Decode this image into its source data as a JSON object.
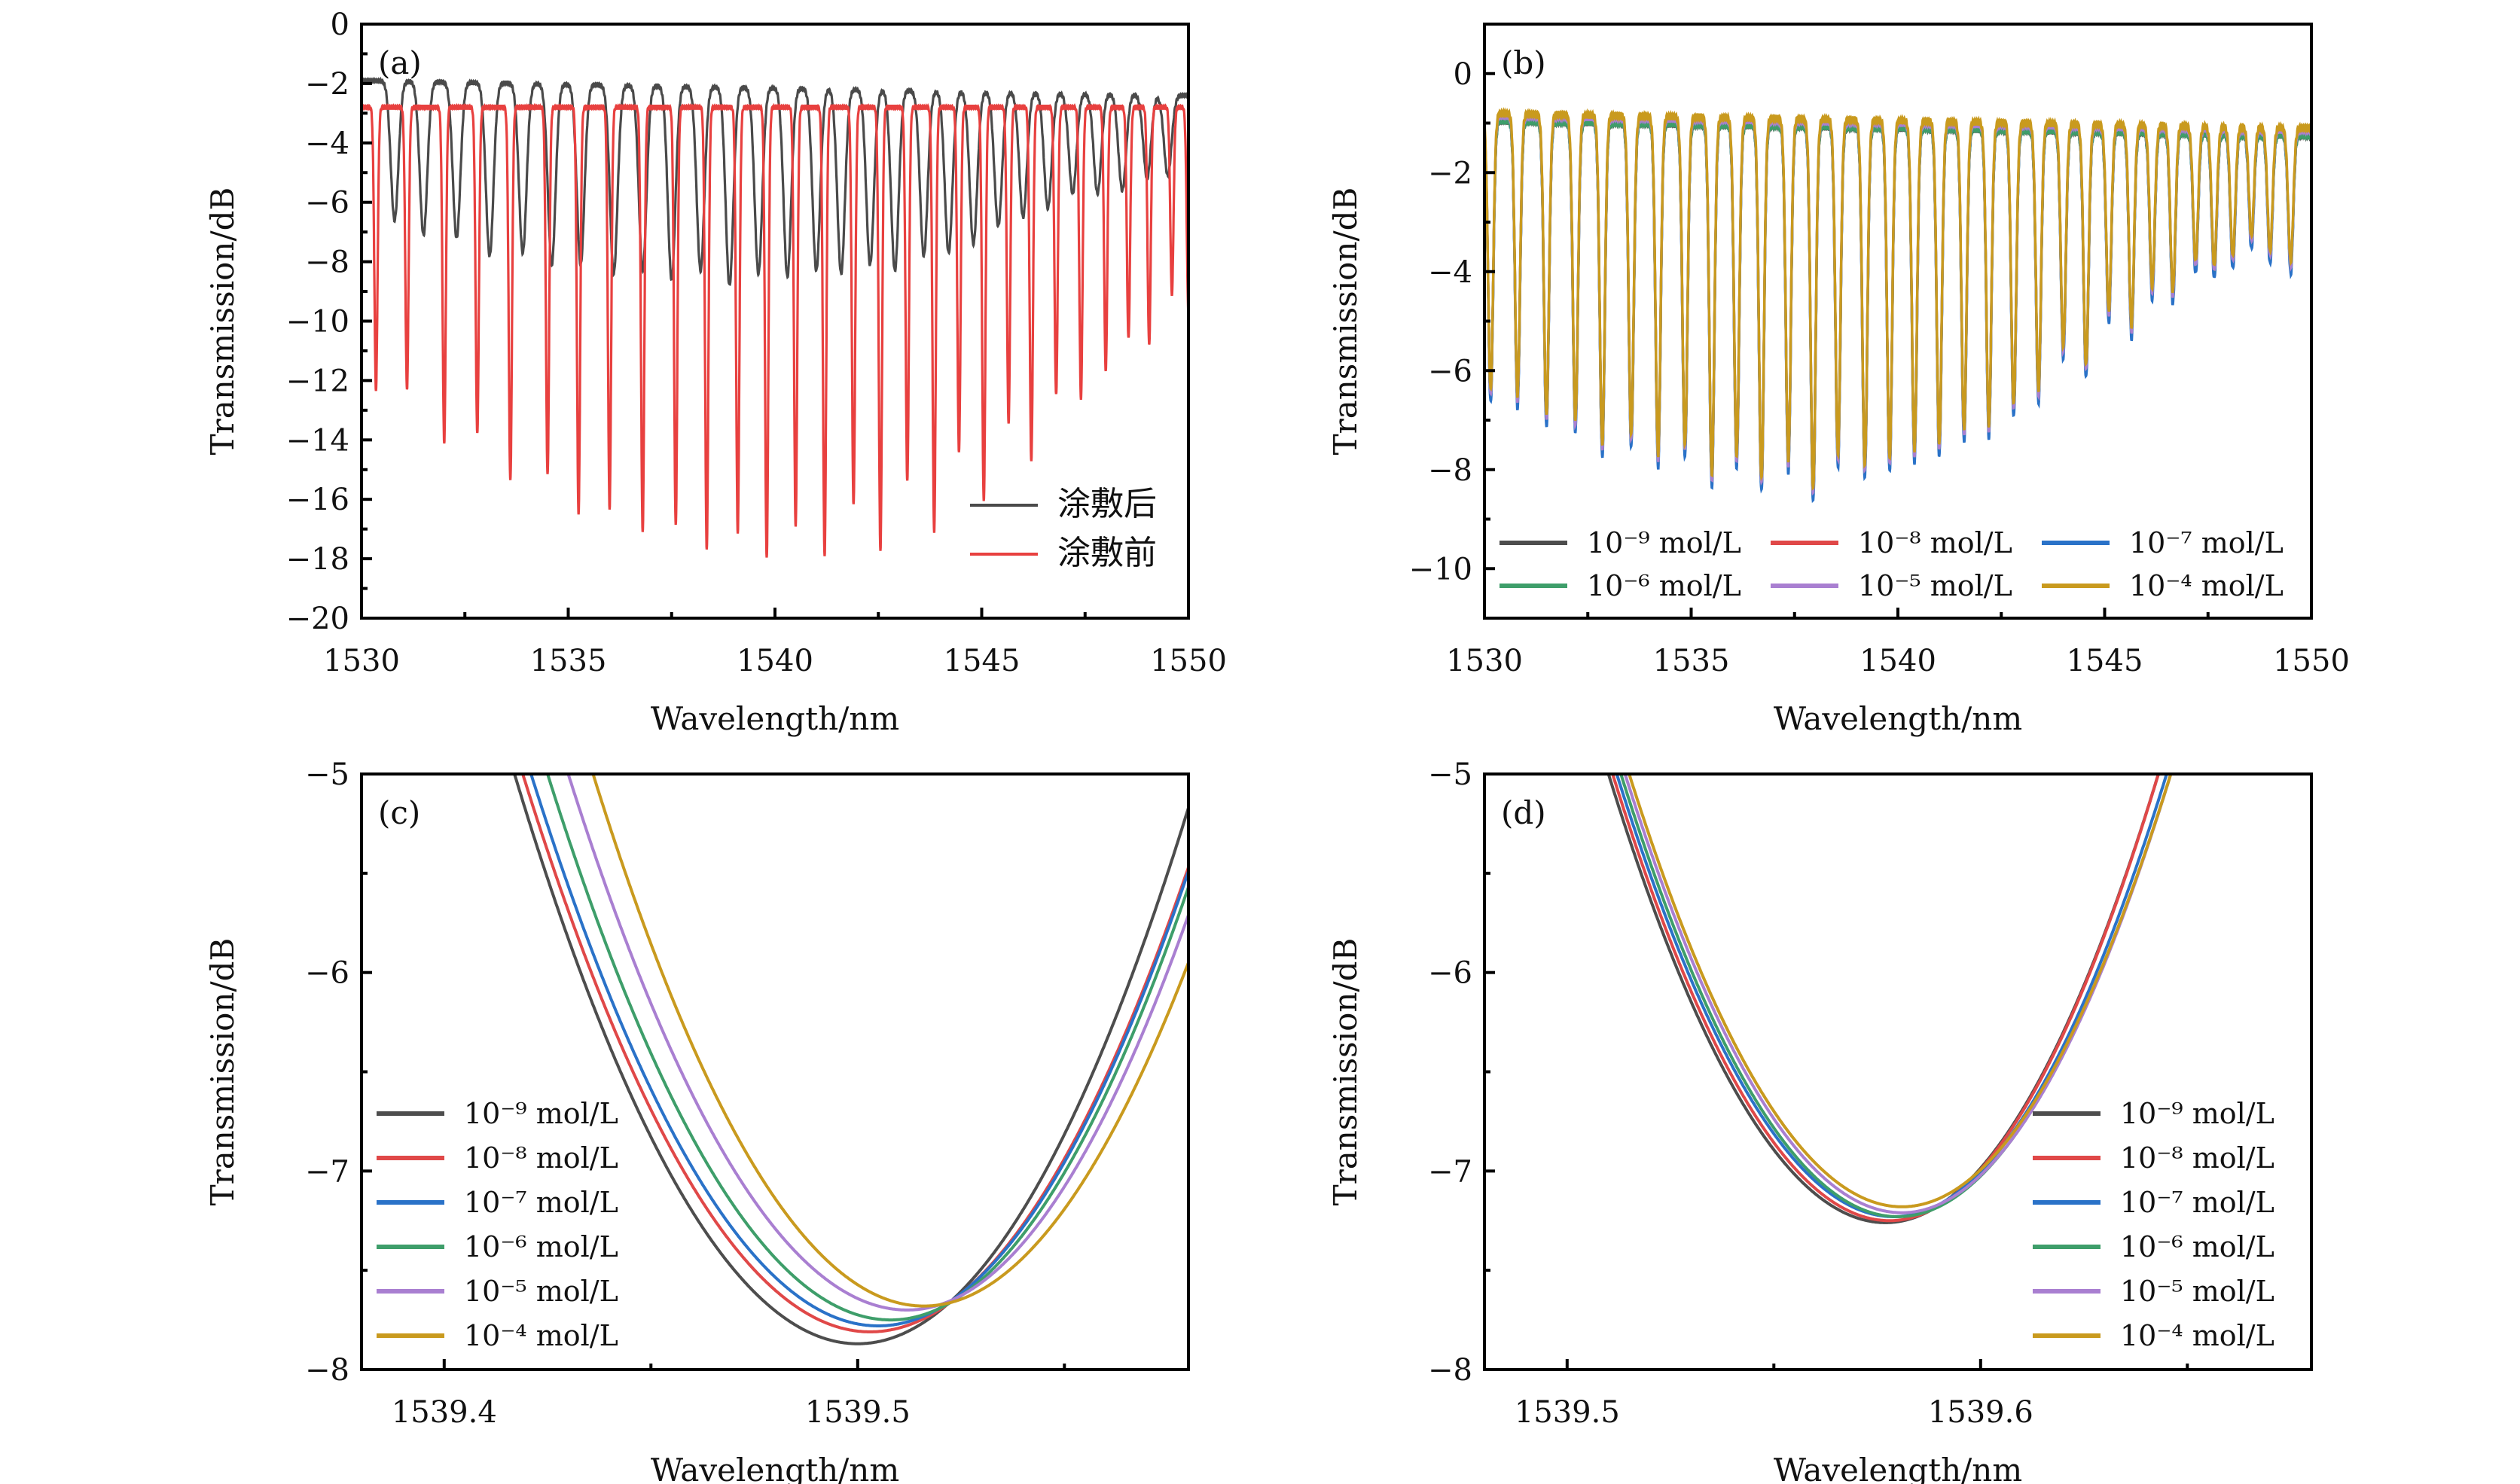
{
  "colors": {
    "c9": "#4d4d4d",
    "c8": "#e04848",
    "c7": "#2a72c8",
    "c6": "#3e9e6a",
    "c5": "#a97fd1",
    "c4": "#c99a1e",
    "after": "#4a4a4a",
    "before": "#e8403f"
  },
  "chart_data": [
    {
      "id": "a",
      "type": "line",
      "panel_label": "(a)",
      "xlabel": "Wavelength/nm",
      "ylabel": "Transmission/dB",
      "xlim": [
        1530,
        1550
      ],
      "ylim": [
        -20,
        0
      ],
      "xticks": [
        1530,
        1535,
        1540,
        1545,
        1550
      ],
      "yticks": [
        0,
        -2,
        -4,
        -6,
        -8,
        -10,
        -12,
        -14,
        -16,
        -18,
        -20
      ],
      "legend_position": "bottom-right",
      "series": [
        {
          "name": "涂敷后",
          "color_key": "after",
          "baseline": -1.9,
          "baseline_end": -2.4,
          "dips": [
            [
              1530.8,
              -6.6
            ],
            [
              1531.5,
              -7.1
            ],
            [
              1532.3,
              -7.2
            ],
            [
              1533.1,
              -7.8
            ],
            [
              1533.9,
              -7.7
            ],
            [
              1534.6,
              -8.1
            ],
            [
              1535.3,
              -8.1
            ],
            [
              1536.1,
              -8.4
            ],
            [
              1536.8,
              -8.3
            ],
            [
              1537.5,
              -8.6
            ],
            [
              1538.2,
              -8.3
            ],
            [
              1538.9,
              -8.8
            ],
            [
              1539.6,
              -8.4
            ],
            [
              1540.3,
              -8.5
            ],
            [
              1541.0,
              -8.3
            ],
            [
              1541.6,
              -8.4
            ],
            [
              1542.3,
              -8.1
            ],
            [
              1542.9,
              -8.3
            ],
            [
              1543.6,
              -7.8
            ],
            [
              1544.2,
              -7.7
            ],
            [
              1544.8,
              -7.4
            ],
            [
              1545.4,
              -6.8
            ],
            [
              1546.0,
              -6.5
            ],
            [
              1546.6,
              -6.2
            ],
            [
              1547.2,
              -5.7
            ],
            [
              1547.8,
              -5.7
            ],
            [
              1548.4,
              -5.6
            ],
            [
              1549.0,
              -5.2
            ],
            [
              1549.5,
              -5.1
            ]
          ]
        },
        {
          "name": "涂敷前",
          "color_key": "before",
          "baseline": -2.8,
          "baseline_end": -2.8,
          "dips": [
            [
              1530.35,
              -12.3
            ],
            [
              1531.1,
              -12.3
            ],
            [
              1532.0,
              -14.1
            ],
            [
              1532.8,
              -13.8
            ],
            [
              1533.6,
              -15.4
            ],
            [
              1534.5,
              -15.2
            ],
            [
              1535.25,
              -16.5
            ],
            [
              1536.0,
              -16.3
            ],
            [
              1536.8,
              -17.1
            ],
            [
              1537.6,
              -16.9
            ],
            [
              1538.35,
              -17.7
            ],
            [
              1539.1,
              -17.1
            ],
            [
              1539.8,
              -18.0
            ],
            [
              1540.5,
              -16.9
            ],
            [
              1541.2,
              -17.9
            ],
            [
              1541.9,
              -16.2
            ],
            [
              1542.55,
              -17.7
            ],
            [
              1543.2,
              -15.4
            ],
            [
              1543.85,
              -17.1
            ],
            [
              1544.45,
              -14.4
            ],
            [
              1545.05,
              -16.1
            ],
            [
              1545.65,
              -13.4
            ],
            [
              1546.2,
              -14.7
            ],
            [
              1546.8,
              -12.5
            ],
            [
              1547.4,
              -12.6
            ],
            [
              1548.0,
              -11.7
            ],
            [
              1548.55,
              -10.6
            ],
            [
              1549.05,
              -10.8
            ],
            [
              1549.6,
              -9.1
            ],
            [
              1550.0,
              -9.8
            ]
          ]
        }
      ]
    },
    {
      "id": "b",
      "type": "line",
      "panel_label": "(b)",
      "xlabel": "Wavelength/nm",
      "ylabel": "Transmission/dB",
      "xlim": [
        1530,
        1550
      ],
      "ylim": [
        -11,
        1
      ],
      "xticks": [
        1530,
        1535,
        1540,
        1545,
        1550
      ],
      "yticks": [
        0,
        -2,
        -4,
        -6,
        -8,
        -10
      ],
      "legend_position": "bottom (3 columns)",
      "series_names": [
        "10⁻⁹ mol/L",
        "10⁻⁸ mol/L",
        "10⁻⁷ mol/L",
        "10⁻⁶ mol/L",
        "10⁻⁵ mol/L",
        "10⁻⁴ mol/L"
      ],
      "series_color_keys": [
        "c9",
        "c8",
        "c7",
        "c6",
        "c5",
        "c4"
      ],
      "series_offsets": [
        -0.15,
        -0.1,
        -0.12,
        -0.14,
        -0.05,
        0.0
      ],
      "baseline": -0.8,
      "baseline_end": -1.1,
      "dips": [
        [
          1530.15,
          -6.5
        ],
        [
          1530.8,
          -6.6
        ],
        [
          1531.5,
          -7.0
        ],
        [
          1532.2,
          -7.1
        ],
        [
          1532.85,
          -7.6
        ],
        [
          1533.55,
          -7.4
        ],
        [
          1534.2,
          -7.8
        ],
        [
          1534.85,
          -7.6
        ],
        [
          1535.5,
          -8.2
        ],
        [
          1536.1,
          -7.8
        ],
        [
          1536.7,
          -8.3
        ],
        [
          1537.35,
          -7.9
        ],
        [
          1537.95,
          -8.5
        ],
        [
          1538.55,
          -7.8
        ],
        [
          1539.2,
          -8.0
        ],
        [
          1539.8,
          -7.9
        ],
        [
          1540.4,
          -7.7
        ],
        [
          1541.0,
          -7.6
        ],
        [
          1541.6,
          -7.3
        ],
        [
          1542.2,
          -7.2
        ],
        [
          1542.8,
          -6.8
        ],
        [
          1543.4,
          -6.5
        ],
        [
          1544.0,
          -5.6
        ],
        [
          1544.55,
          -6.0
        ],
        [
          1545.1,
          -4.9
        ],
        [
          1545.65,
          -5.2
        ],
        [
          1546.15,
          -4.4
        ],
        [
          1546.65,
          -4.5
        ],
        [
          1547.2,
          -3.9
        ],
        [
          1547.65,
          -4.0
        ],
        [
          1548.1,
          -3.8
        ],
        [
          1548.55,
          -3.4
        ],
        [
          1549.0,
          -3.7
        ],
        [
          1549.5,
          -3.9
        ]
      ]
    },
    {
      "id": "c",
      "type": "line",
      "panel_label": "(c)",
      "xlabel": "Wavelength/nm",
      "ylabel": "Transmission/dB",
      "xlim": [
        1539.38,
        1539.58
      ],
      "ylim": [
        -8,
        -5
      ],
      "xticks": [
        1539.4,
        1539.5
      ],
      "xticks_minor": [
        1539.45,
        1539.55
      ],
      "yticks": [
        -5,
        -6,
        -7,
        -8
      ],
      "legend_position": "left-bottom",
      "series": [
        {
          "name": "10⁻⁹ mol/L",
          "color_key": "c9",
          "min_x": 1539.5,
          "min_y": -7.87,
          "x_at_minus5_left": 1539.417,
          "y_at_right_edge": -5.17
        },
        {
          "name": "10⁻⁸ mol/L",
          "color_key": "c8",
          "min_x": 1539.503,
          "min_y": -7.81,
          "x_at_minus5_left": 1539.419,
          "y_at_right_edge": -5.47
        },
        {
          "name": "10⁻⁷ mol/L",
          "color_key": "c7",
          "min_x": 1539.505,
          "min_y": -7.78,
          "x_at_minus5_left": 1539.421,
          "y_at_right_edge": -5.49
        },
        {
          "name": "10⁻⁶ mol/L",
          "color_key": "c6",
          "min_x": 1539.508,
          "min_y": -7.75,
          "x_at_minus5_left": 1539.425,
          "y_at_right_edge": -5.57
        },
        {
          "name": "10⁻⁵ mol/L",
          "color_key": "c5",
          "min_x": 1539.512,
          "min_y": -7.7,
          "x_at_minus5_left": 1539.43,
          "y_at_right_edge": -5.71
        },
        {
          "name": "10⁻⁴ mol/L",
          "color_key": "c4",
          "min_x": 1539.516,
          "min_y": -7.68,
          "x_at_minus5_left": 1539.436,
          "y_at_right_edge": -5.95
        }
      ]
    },
    {
      "id": "d",
      "type": "line",
      "panel_label": "(d)",
      "xlabel": "Wavelength/nm",
      "ylabel": "Transmission/dB",
      "xlim": [
        1539.48,
        1539.68
      ],
      "ylim": [
        -8,
        -5
      ],
      "xticks": [
        1539.5,
        1539.6
      ],
      "xticks_minor": [
        1539.55,
        1539.65
      ],
      "yticks": [
        -5,
        -6,
        -7,
        -8
      ],
      "legend_position": "right-bottom",
      "series": [
        {
          "name": "10⁻⁹ mol/L",
          "color_key": "c9",
          "min_x": 1539.577,
          "min_y": -7.26,
          "x_at_minus5_left": 1539.51,
          "x_at_minus5_right": 1539.643
        },
        {
          "name": "10⁻⁸ mol/L",
          "color_key": "c8",
          "min_x": 1539.578,
          "min_y": -7.25,
          "x_at_minus5_left": 1539.511,
          "x_at_minus5_right": 1539.643
        },
        {
          "name": "10⁻⁷ mol/L",
          "color_key": "c7",
          "min_x": 1539.579,
          "min_y": -7.23,
          "x_at_minus5_left": 1539.512,
          "x_at_minus5_right": 1539.645
        },
        {
          "name": "10⁻⁶ mol/L",
          "color_key": "c6",
          "min_x": 1539.58,
          "min_y": -7.23,
          "x_at_minus5_left": 1539.513,
          "x_at_minus5_right": 1539.646
        },
        {
          "name": "10⁻⁵ mol/L",
          "color_key": "c5",
          "min_x": 1539.581,
          "min_y": -7.21,
          "x_at_minus5_left": 1539.514,
          "x_at_minus5_right": 1539.646
        },
        {
          "name": "10⁻⁴ mol/L",
          "color_key": "c4",
          "min_x": 1539.581,
          "min_y": -7.18,
          "x_at_minus5_left": 1539.515,
          "x_at_minus5_right": 1539.646
        }
      ]
    }
  ]
}
